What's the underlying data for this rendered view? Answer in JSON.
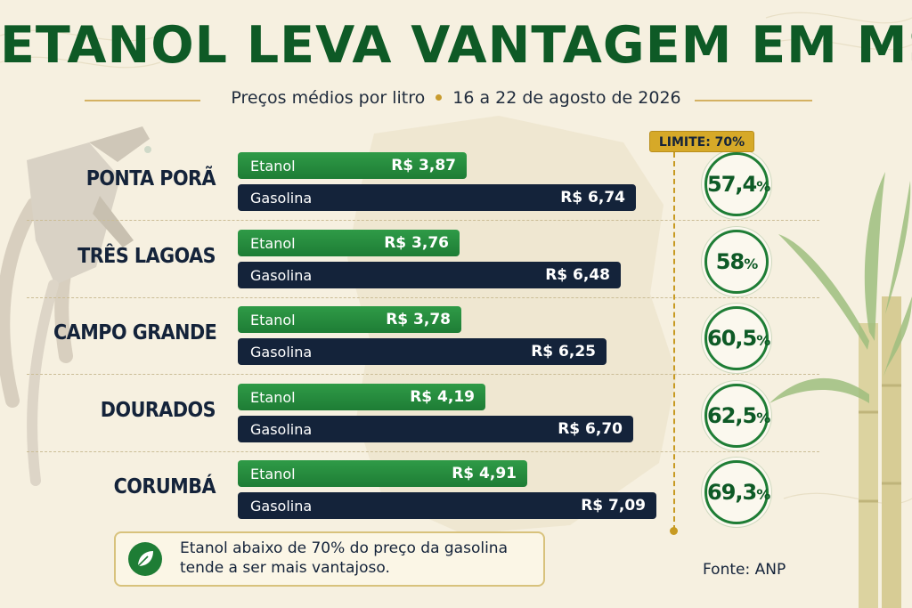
{
  "header": {
    "title": "ETANOL LEVA VANTAGEM EM MS",
    "subtitle_left": "Preços médios por litro",
    "subtitle_right": "16 a 22 de agosto de 2026"
  },
  "chart_data": {
    "type": "bar",
    "orientation": "horizontal",
    "title": "ETANOL LEVA VANTAGEM EM MS",
    "subtitle": "Preços médios por litro • 16 a 22 de agosto de 2026",
    "categories": [
      "PONTA PORÃ",
      "TRÊS LAGOAS",
      "CAMPO GRANDE",
      "DOURADOS",
      "CORUMBÁ"
    ],
    "series": [
      {
        "name": "Etanol",
        "values": [
          3.87,
          3.76,
          3.78,
          4.19,
          4.91
        ],
        "labels": [
          "R$ 3,87",
          "R$ 3,76",
          "R$ 3,78",
          "R$ 4,19",
          "R$ 4,91"
        ],
        "color": "#1e7d35"
      },
      {
        "name": "Gasolina",
        "values": [
          6.74,
          6.48,
          6.25,
          6.7,
          7.09
        ],
        "labels": [
          "R$ 6,74",
          "R$ 6,48",
          "R$ 6,25",
          "R$ 6,70",
          "R$ 7,09"
        ],
        "color": "#14233a"
      }
    ],
    "ratios": [
      {
        "value": "57,4",
        "unit": "%"
      },
      {
        "value": "58",
        "unit": "%"
      },
      {
        "value": "60,5",
        "unit": "%"
      },
      {
        "value": "62,5",
        "unit": "%"
      },
      {
        "value": "69,3",
        "unit": "%"
      }
    ],
    "limit_label": "LIMITE: 70%",
    "xlim": [
      0,
      7.09
    ],
    "grid": false,
    "legend": "none"
  },
  "note": {
    "line1": "Etanol abaixo de 70% do preço da gasolina",
    "line2": "tende a ser mais vantajoso."
  },
  "source": {
    "label": "Fonte:",
    "value": "ANP"
  },
  "colors": {
    "title": "#0e5a26",
    "etanol": "#1e7d35",
    "gasolina": "#14233a",
    "limit": "#d6a928",
    "background": "#f6f0e0"
  },
  "icons": [
    "fuel-pump-nozzle-icon",
    "sugarcane-icon",
    "leaf-icon",
    "ms-map-icon"
  ]
}
